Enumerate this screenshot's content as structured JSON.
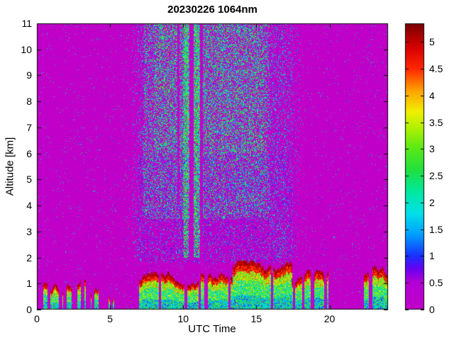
{
  "chart_data": {
    "type": "heatmap",
    "title": "20230226 1064nm",
    "xlabel": "UTC Time",
    "ylabel": "Altitude [km]",
    "xlim": [
      0,
      24
    ],
    "ylim": [
      0,
      11
    ],
    "xticks": [
      0,
      5,
      10,
      15,
      20
    ],
    "yticks": [
      0,
      1,
      2,
      3,
      4,
      5,
      6,
      7,
      8,
      9,
      10,
      11
    ],
    "grid": false,
    "legend": "none",
    "background_value": 0,
    "background_color": "#C000C8",
    "colorbar": {
      "position": "right",
      "min": 0,
      "max": 5.35,
      "ticks": [
        0,
        0.5,
        1,
        1.5,
        2,
        2.5,
        3,
        3.5,
        4,
        4.5,
        5
      ]
    },
    "colormap": [
      [
        0.0,
        "#C000C8"
      ],
      [
        0.5,
        "#B400D6"
      ],
      [
        0.75,
        "#6A00F0"
      ],
      [
        1.0,
        "#1830FF"
      ],
      [
        1.4,
        "#00A0FF"
      ],
      [
        1.8,
        "#00E0E8"
      ],
      [
        2.2,
        "#00E8A0"
      ],
      [
        2.6,
        "#20E040"
      ],
      [
        3.0,
        "#58E818"
      ],
      [
        3.4,
        "#B0F000"
      ],
      [
        3.7,
        "#F0F000"
      ],
      [
        4.1,
        "#FFA000"
      ],
      [
        4.5,
        "#FF2800"
      ],
      [
        4.9,
        "#D80000"
      ],
      [
        5.35,
        "#7A0000"
      ]
    ],
    "noise_regions": [
      {
        "name": "background-sparse-speckle",
        "x": [
          0,
          24
        ],
        "y": [
          0,
          11
        ],
        "density": 0.013,
        "val": [
          0.7,
          2.6
        ]
      },
      {
        "name": "central-low-purple-haze",
        "x": [
          6.9,
          17.5
        ],
        "y": [
          1.8,
          6.0
        ],
        "density": 0.2,
        "val": [
          0.2,
          1.0
        ]
      },
      {
        "name": "central-column-speckle",
        "x": [
          6.9,
          17.5
        ],
        "y": [
          1.8,
          11
        ],
        "density": 0.1,
        "val": [
          0.8,
          2.6
        ]
      },
      {
        "name": "core-green-speckle",
        "x": [
          7.3,
          15.9
        ],
        "y": [
          3.5,
          11
        ],
        "density": 0.3,
        "val": [
          1.3,
          3.1
        ]
      },
      {
        "name": "upper-dense-green",
        "x": [
          8.0,
          15.5
        ],
        "y": [
          6.0,
          11
        ],
        "density": 0.18,
        "val": [
          1.6,
          3.3
        ]
      },
      {
        "name": "dense-stripe-1",
        "x": [
          10.02,
          10.38
        ],
        "y": [
          2.0,
          11
        ],
        "density": 0.85,
        "val": [
          1.6,
          3.4
        ]
      },
      {
        "name": "dense-stripe-2",
        "x": [
          10.72,
          11.12
        ],
        "y": [
          2.0,
          11
        ],
        "density": 0.85,
        "val": [
          1.6,
          3.4
        ]
      },
      {
        "name": "right-fade-inner",
        "x": [
          15.9,
          17.0
        ],
        "y": [
          2.0,
          11
        ],
        "density": 0.1,
        "val": [
          0.9,
          2.4
        ]
      },
      {
        "name": "right-fade-outer",
        "x": [
          17.0,
          18.0
        ],
        "y": [
          2.0,
          11
        ],
        "density": 0.045,
        "val": [
          0.8,
          2.2
        ]
      },
      {
        "name": "left-edge-fade",
        "x": [
          6.5,
          7.3
        ],
        "y": [
          2.0,
          11
        ],
        "density": 0.06,
        "val": [
          0.9,
          2.4
        ]
      }
    ],
    "gap_stripes": [
      {
        "name": "attenuated-gap-1",
        "x": [
          10.42,
          10.7
        ],
        "y": [
          1.9,
          11
        ]
      },
      {
        "name": "attenuated-gap-2",
        "x": [
          11.14,
          11.34
        ],
        "y": [
          1.9,
          11
        ]
      },
      {
        "name": "attenuated-gap-3",
        "x": [
          9.62,
          9.78
        ],
        "y": [
          4.0,
          11
        ]
      }
    ],
    "post_gap_regions": [
      {
        "name": "gap-residual-speckle",
        "x": [
          9.5,
          11.4
        ],
        "y": [
          2.0,
          11
        ],
        "density": 0.02,
        "val": [
          0.8,
          2.2
        ]
      }
    ],
    "surface_layer": {
      "description": "Low-level aerosol/cloud layer below ~2 km; dark-red strong returns at layer top, yellow/green/cyan mixed below",
      "segments": [
        {
          "x": [
            0.05,
            0.8
          ],
          "top": [
            0.75,
            1.15
          ],
          "gap_prob": 0.2
        },
        {
          "x": [
            0.9,
            1.9
          ],
          "top": [
            0.65,
            1.1
          ],
          "gap_prob": 0.25
        },
        {
          "x": [
            2.05,
            3.3
          ],
          "top": [
            0.7,
            1.15
          ],
          "gap_prob": 0.22
        },
        {
          "x": [
            3.45,
            3.7
          ],
          "top": [
            0.35,
            0.65
          ],
          "gap_prob": 0.3
        },
        {
          "x": [
            3.95,
            4.4
          ],
          "top": [
            0.7,
            1.0
          ],
          "gap_prob": 0.25
        },
        {
          "x": [
            4.9,
            5.25
          ],
          "top": [
            0.35,
            0.7
          ],
          "gap_prob": 0.3
        },
        {
          "x": [
            7.0,
            9.3
          ],
          "top": [
            0.95,
            1.45
          ],
          "gap_prob": 0.04
        },
        {
          "x": [
            9.3,
            12.0
          ],
          "top": [
            0.85,
            1.4
          ],
          "gap_prob": 0.06
        },
        {
          "x": [
            12.0,
            13.4
          ],
          "top": [
            1.0,
            1.65
          ],
          "gap_prob": 0.04
        },
        {
          "x": [
            13.4,
            17.4
          ],
          "top": [
            1.35,
            1.9
          ],
          "gap_prob": 0.02
        },
        {
          "x": [
            17.4,
            19.9
          ],
          "top": [
            1.0,
            1.55
          ],
          "gap_prob": 0.05
        },
        {
          "x": [
            22.35,
            23.95
          ],
          "top": [
            1.15,
            1.7
          ],
          "gap_prob": 0.06
        }
      ]
    }
  }
}
